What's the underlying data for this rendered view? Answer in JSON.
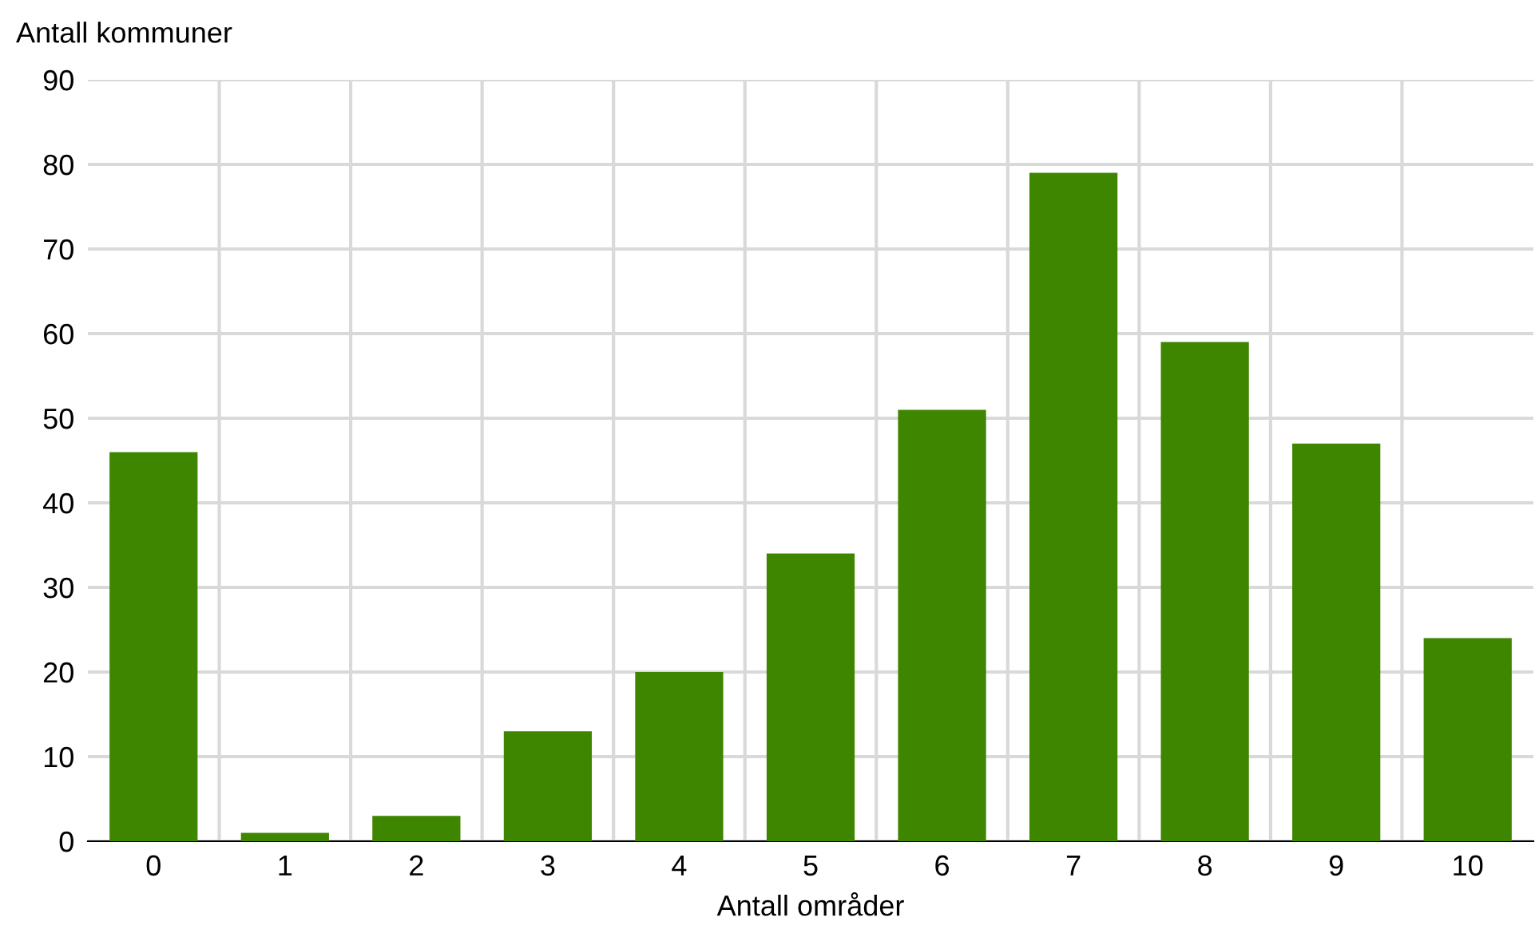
{
  "chart_data": {
    "type": "bar",
    "ylabel": "Antall kommuner",
    "xlabel": "Antall områder",
    "categories": [
      "0",
      "1",
      "2",
      "3",
      "4",
      "5",
      "6",
      "7",
      "8",
      "9",
      "10"
    ],
    "values": [
      46,
      1,
      3,
      13,
      20,
      34,
      51,
      79,
      59,
      47,
      24
    ],
    "color": "#3f8600",
    "ylim": [
      0,
      90
    ],
    "yticks": [
      0,
      10,
      20,
      30,
      40,
      50,
      60,
      70,
      80,
      90
    ],
    "grid": true,
    "legend": false
  }
}
